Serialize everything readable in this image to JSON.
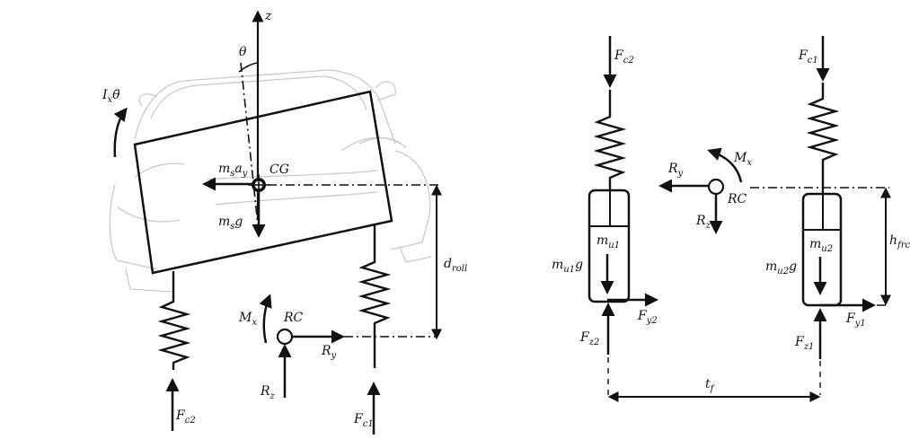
{
  "left_figure": {
    "axis_z": "z",
    "theta": "θ",
    "inertia": {
      "base": "I",
      "sub": "x",
      "tail": "θ̈"
    },
    "ms_ay": {
      "base": "m",
      "sub": "s",
      "mid": "a",
      "sub2": "y"
    },
    "cg": "CG",
    "ms_g": {
      "base": "m",
      "sub": "s",
      "tail": "g"
    },
    "d_roll": {
      "base": "d",
      "sub": "roll"
    },
    "mx": {
      "base": "M",
      "sub": "x"
    },
    "rc": "RC",
    "ry": {
      "base": "R",
      "sub": "y"
    },
    "rz": {
      "base": "R",
      "sub": "z"
    },
    "fc2": {
      "base": "F",
      "sub": "c2"
    },
    "fc1": {
      "base": "F",
      "sub": "c1"
    }
  },
  "right_figure": {
    "fc2": {
      "base": "F",
      "sub": "c2"
    },
    "fc1": {
      "base": "F",
      "sub": "c1"
    },
    "ry": {
      "base": "R",
      "sub": "y"
    },
    "mx": {
      "base": "M",
      "sub": "x"
    },
    "rc": "RC",
    "rz": {
      "base": "R",
      "sub": "z"
    },
    "mu1": {
      "base": "m",
      "sub": "u1"
    },
    "mu2": {
      "base": "m",
      "sub": "u2"
    },
    "mu1g": {
      "base": "m",
      "sub": "u1",
      "tail": "g"
    },
    "mu2g": {
      "base": "m",
      "sub": "u2",
      "tail": "g"
    },
    "hfrc": {
      "base": "h",
      "sub": "frc"
    },
    "fy2": {
      "base": "F",
      "sub": "y2"
    },
    "fy1": {
      "base": "F",
      "sub": "y1"
    },
    "fz2": {
      "base": "F",
      "sub": "z2"
    },
    "fz1": {
      "base": "F",
      "sub": "z1"
    },
    "tf": {
      "base": "t",
      "sub": "f"
    }
  }
}
